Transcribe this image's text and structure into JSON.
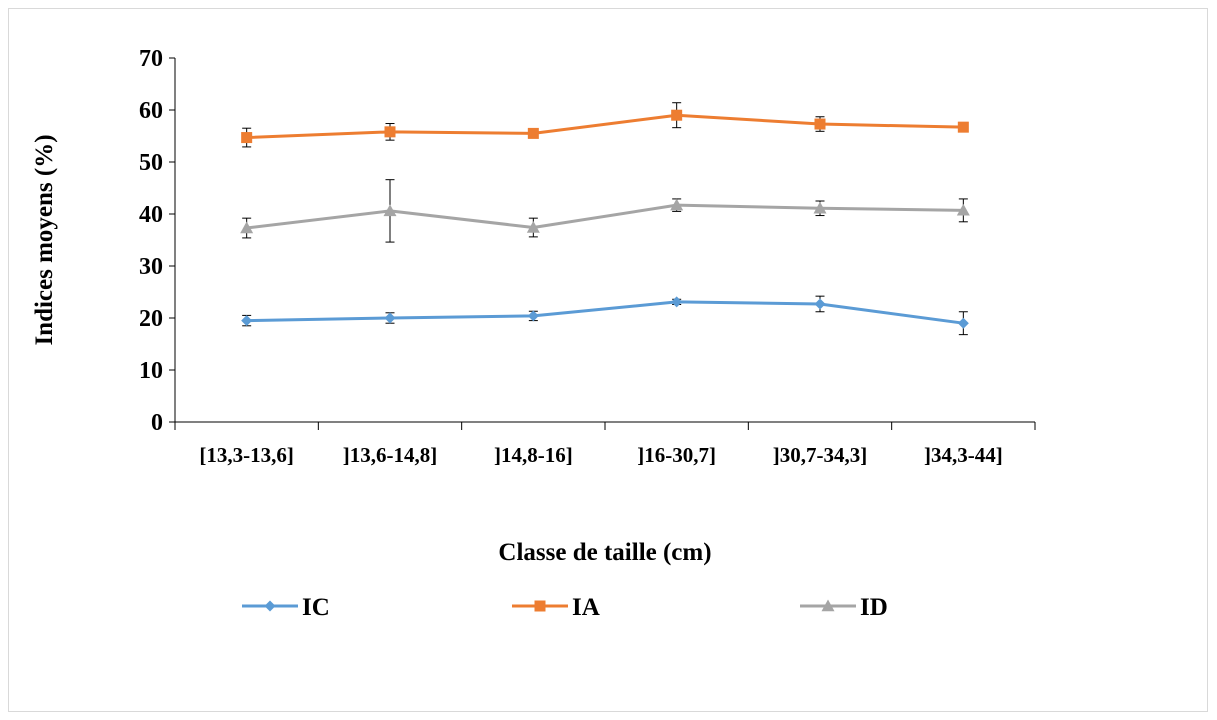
{
  "chart_data": {
    "type": "line",
    "xlabel": "Classe de taille (cm)",
    "ylabel": "Indices moyens (%)",
    "categories": [
      "[13,3-13,6]",
      "]13,6-14,8]",
      "]14,8-16]",
      "]16-30,7]",
      "]30,7-34,3]",
      "]34,3-44]"
    ],
    "ylim": [
      0,
      70
    ],
    "yticks": [
      0,
      10,
      20,
      30,
      40,
      50,
      60,
      70
    ],
    "grid": false,
    "legend_position": "bottom",
    "series": [
      {
        "name": "IC",
        "color": "#5b9bd5",
        "marker": "diamond",
        "values": [
          19.5,
          20.0,
          20.4,
          23.1,
          22.7,
          19.0
        ],
        "error": [
          1.0,
          1.0,
          0.9,
          0.5,
          1.5,
          2.2
        ]
      },
      {
        "name": "IA",
        "color": "#ed7d31",
        "marker": "square",
        "values": [
          54.7,
          55.8,
          55.5,
          59.0,
          57.3,
          56.7
        ],
        "error": [
          1.8,
          1.6,
          0.5,
          2.4,
          1.4,
          0.4
        ]
      },
      {
        "name": "ID",
        "color": "#a5a5a5",
        "marker": "triangle",
        "values": [
          37.3,
          40.6,
          37.4,
          41.7,
          41.1,
          40.7
        ],
        "error": [
          1.9,
          6.0,
          1.8,
          1.2,
          1.4,
          2.2
        ]
      }
    ]
  }
}
